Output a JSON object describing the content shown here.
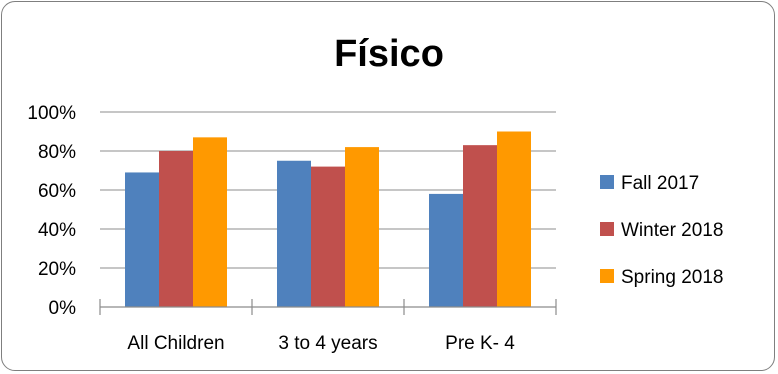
{
  "chart_data": {
    "type": "bar",
    "title": "Físico",
    "xlabel": "",
    "ylabel": "",
    "categories": [
      "All Children",
      "3 to 4 years",
      "Pre K- 4"
    ],
    "series": [
      {
        "name": "Fall 2017",
        "color": "#4f81bd",
        "values": [
          69,
          75,
          58
        ]
      },
      {
        "name": "Winter 2018",
        "color": "#c0504d",
        "values": [
          80,
          72,
          83
        ]
      },
      {
        "name": "Spring 2018",
        "color": "#ff9900",
        "values": [
          87,
          82,
          90
        ]
      }
    ],
    "ylim": [
      0,
      100
    ],
    "yticks": [
      "0%",
      "20%",
      "40%",
      "60%",
      "80%",
      "100%"
    ],
    "grid": true,
    "legend_position": "right"
  }
}
